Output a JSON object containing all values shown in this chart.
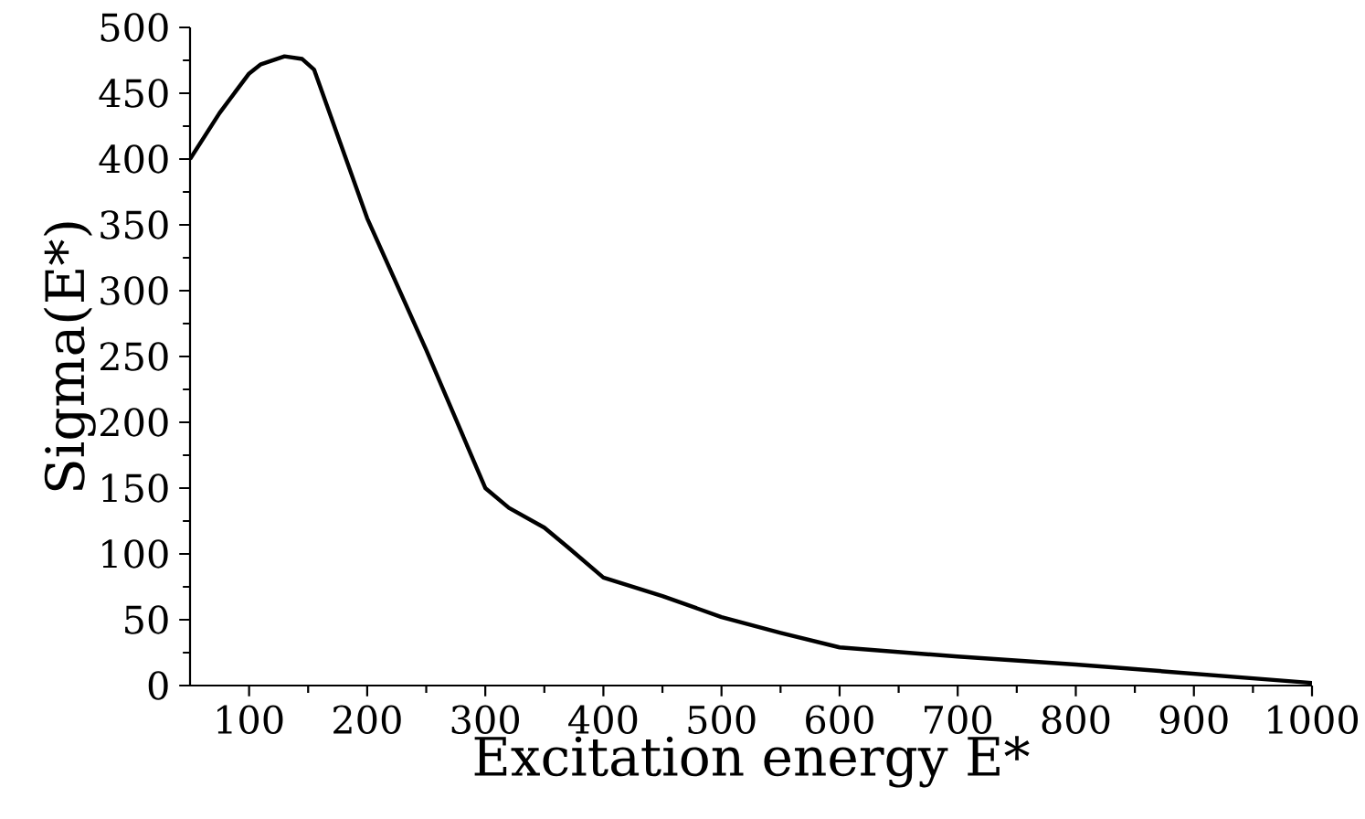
{
  "chart_data": {
    "type": "line",
    "xlabel": "Excitation energy E*",
    "ylabel": "Sigma(E*)",
    "x": [
      50,
      75,
      100,
      110,
      130,
      145,
      155,
      200,
      250,
      300,
      320,
      350,
      370,
      400,
      450,
      500,
      550,
      600,
      700,
      800,
      900,
      1000
    ],
    "series": [
      {
        "color": "#000000",
        "values": [
          400,
          435,
          465,
          472,
          478,
          476,
          468,
          355,
          255,
          150,
          135,
          120,
          105,
          82,
          68,
          52,
          40,
          29,
          22,
          16,
          9,
          2
        ]
      }
    ],
    "xlim": [
      50,
      1000
    ],
    "ylim": [
      0,
      500
    ],
    "xticks": [
      100,
      200,
      300,
      400,
      500,
      600,
      700,
      800,
      900,
      1000
    ],
    "yticks": [
      0,
      50,
      100,
      150,
      200,
      250,
      300,
      350,
      400,
      450,
      500
    ],
    "grid": false,
    "marker": "none",
    "line_style": "solid"
  }
}
